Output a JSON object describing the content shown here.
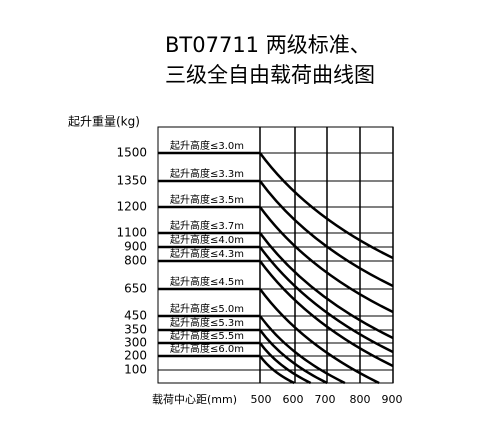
{
  "title_lines": [
    "BT07711 两级标准、",
    "三级全自由载荷曲线图"
  ],
  "y_axis_label": "起升重量(kg)",
  "x_axis_label": "载荷中心距(mm)",
  "y_labels": [
    "1500",
    "1350",
    "1200",
    "1100",
    "900",
    "800",
    "650",
    "450",
    "350",
    "300",
    "200",
    "100"
  ],
  "x_labels": [
    "500",
    "600",
    "700",
    "800",
    "900"
  ],
  "height_labels": [
    "起升高度≤3.0m",
    "起升高度≤3.3m",
    "起升高度≤3.5m",
    "起升高度≤3.7m",
    "起升高度≤4.0m",
    "起升高度≤4.3m",
    "起升高度≤4.5m",
    "起升高度≤5.0m",
    "起升高度≤5.3m",
    "起升高度≤5.5m",
    "起升高度≤6.0m"
  ]
}
